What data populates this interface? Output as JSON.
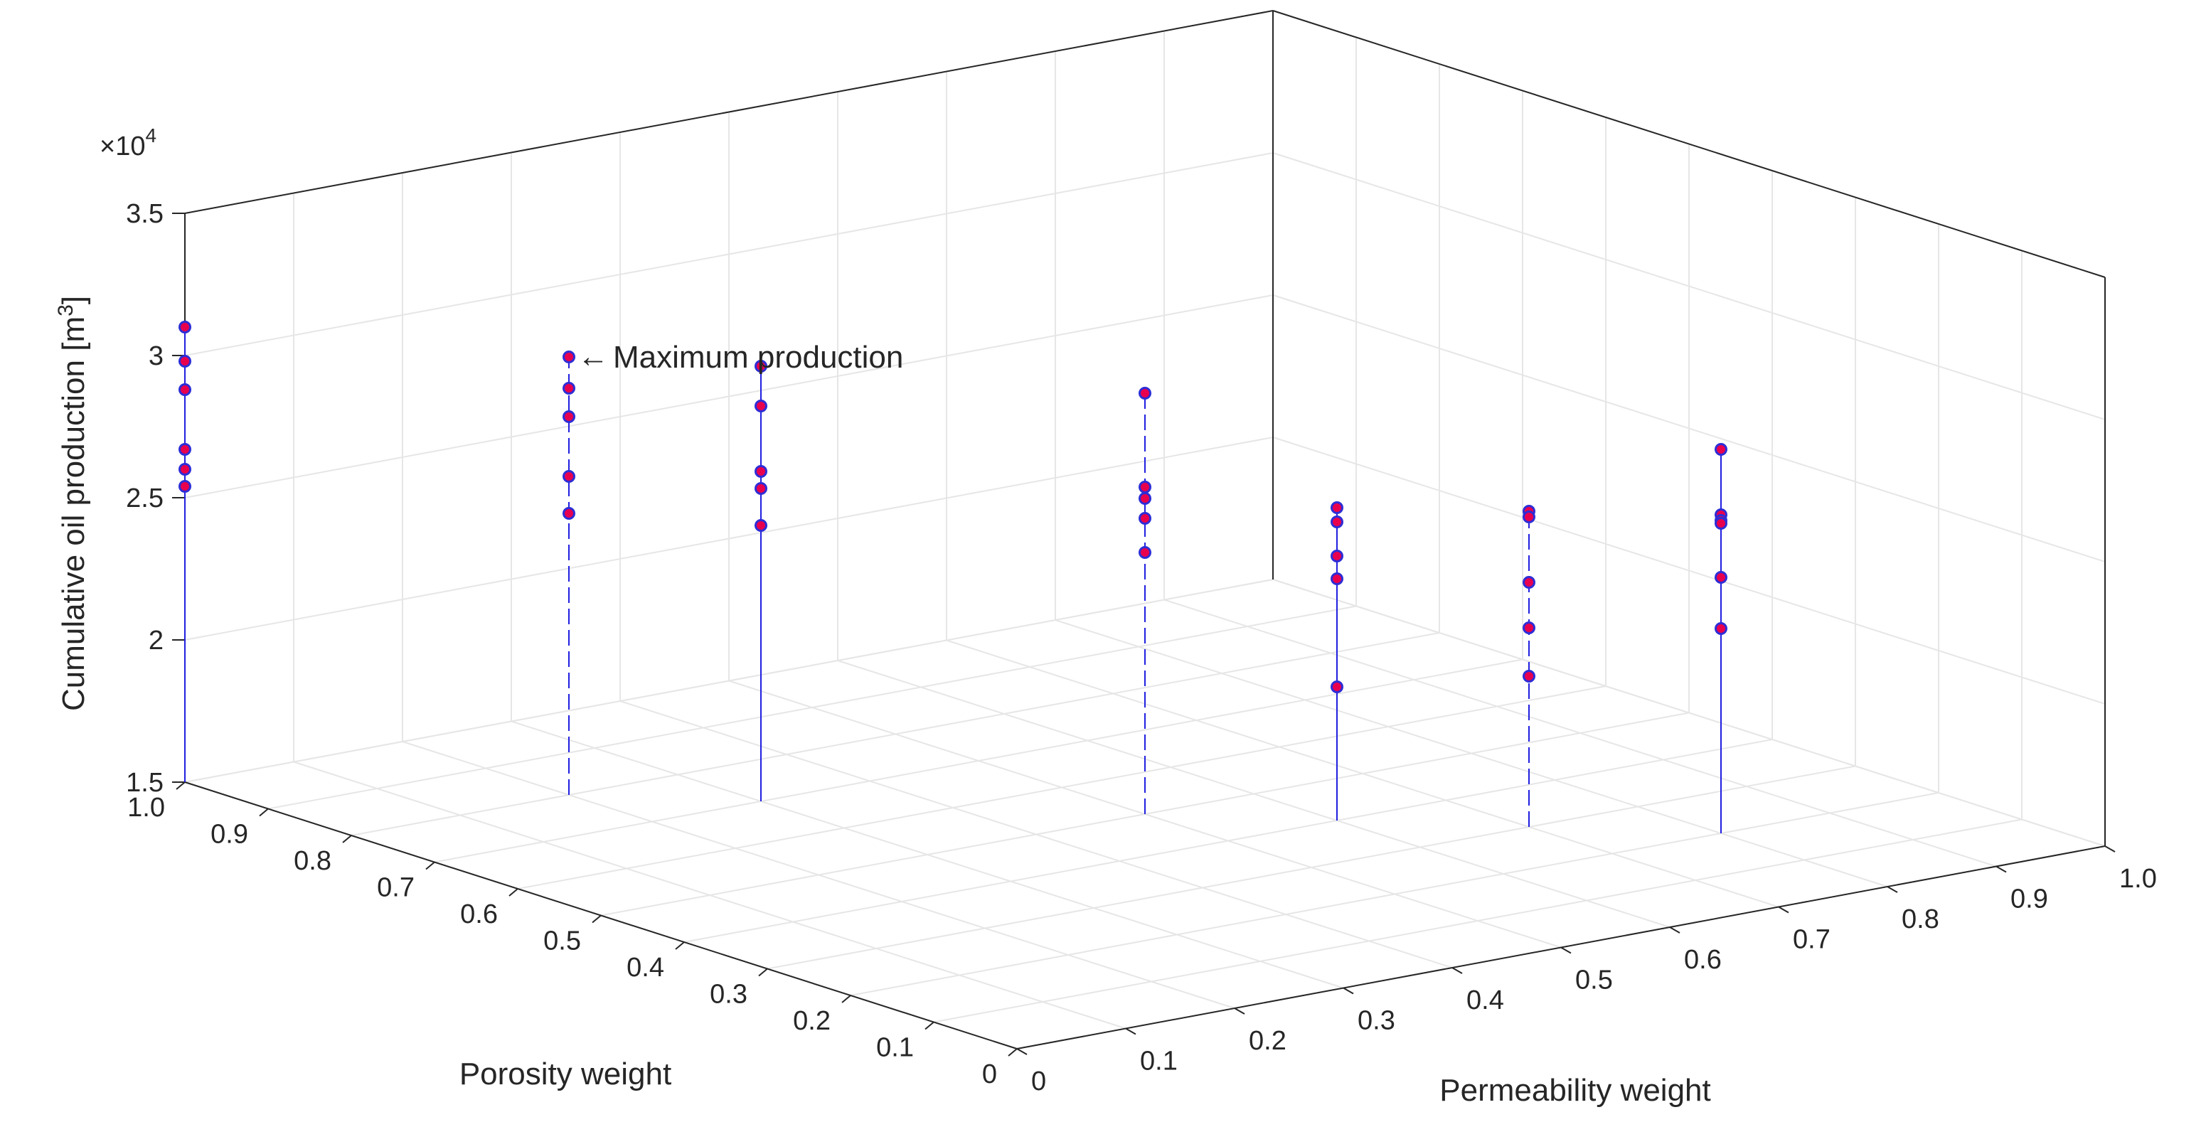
{
  "chart_data": {
    "type": "scatter",
    "variant": "3d-stem",
    "xlabel": "Porosity weight",
    "ylabel": "Permeability weight",
    "zlabel": "Cumulative oil production [m",
    "zlabel_sup": "3",
    "zlabel_close": "]",
    "z_exponent_prefix": "×10",
    "z_exponent_power": "4",
    "xlim": [
      0,
      1
    ],
    "ylim": [
      0,
      1
    ],
    "zlim": [
      15000,
      35000
    ],
    "x_ticks": [
      0,
      0.1,
      0.2,
      0.3,
      0.4,
      0.5,
      0.6,
      0.7,
      0.8,
      0.9,
      1.0
    ],
    "y_ticks": [
      0,
      0.1,
      0.2,
      0.3,
      0.4,
      0.5,
      0.6,
      0.7,
      0.8,
      0.9,
      1.0
    ],
    "z_ticks": [
      15000,
      20000,
      25000,
      30000,
      35000
    ],
    "x_tick_labels": [
      "0",
      "0.1",
      "0.2",
      "0.3",
      "0.4",
      "0.5",
      "0.6",
      "0.7",
      "0.8",
      "0.9",
      "1.0"
    ],
    "y_tick_labels": [
      "0",
      "0.1",
      "0.2",
      "0.3",
      "0.4",
      "0.5",
      "0.6",
      "0.7",
      "0.8",
      "0.9",
      "1.0"
    ],
    "z_tick_labels": [
      "1.5",
      "2",
      "2.5",
      "3",
      "3.5"
    ],
    "grid": true,
    "marker_face_color": "#e8004f",
    "marker_edge_color": "#2d2dd6",
    "stem_color": "#1f1fe0",
    "stems": [
      {
        "x": 1.0,
        "y": 0.0,
        "z": [
          31000,
          29800,
          28800,
          26700,
          26000,
          25400
        ]
      },
      {
        "x": 0.8,
        "y": 0.2,
        "z": [
          30400,
          29300,
          28300,
          26200,
          24900
        ]
      },
      {
        "x": 0.7,
        "y": 0.3,
        "z": [
          30300,
          28900,
          26600,
          26000,
          24700
        ]
      },
      {
        "x": 0.5,
        "y": 0.5,
        "z": [
          29800,
          26500,
          26100,
          25400,
          24200
        ]
      },
      {
        "x": 0.4,
        "y": 0.6,
        "z": [
          26000,
          25500,
          24300,
          23500,
          19700
        ]
      },
      {
        "x": 0.3,
        "y": 0.7,
        "z": [
          26100,
          25900,
          23600,
          22000,
          20300
        ]
      },
      {
        "x": 0.2,
        "y": 0.8,
        "z": [
          28500,
          26200,
          26000,
          25900,
          24000,
          22200
        ]
      }
    ],
    "annotation": {
      "text": "Maximum production",
      "arrow": "←",
      "x": 0.8,
      "y": 0.2,
      "z": 30400
    }
  }
}
